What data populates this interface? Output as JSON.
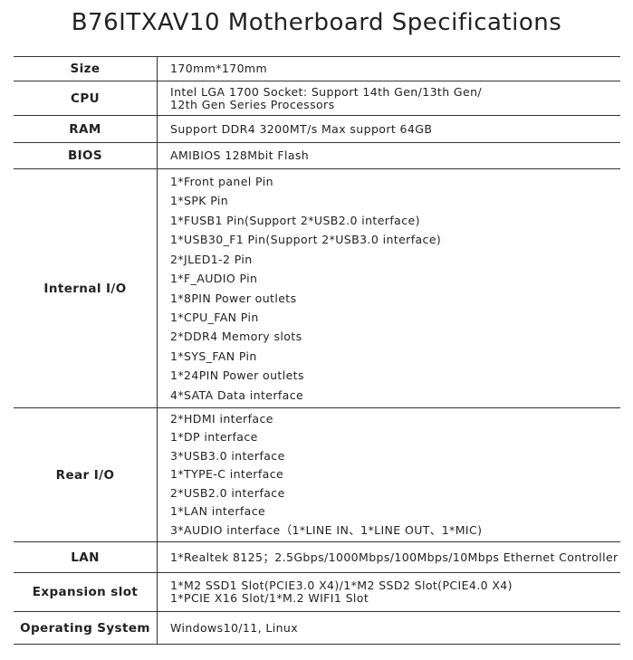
{
  "title": "B76ITXAV10 Motherboard Specifications",
  "rows": [
    {
      "label": "Size",
      "lines": [
        "170mm*170mm"
      ]
    },
    {
      "label": "CPU",
      "lines": [
        "Intel LGA 1700 Socket: Support 14th Gen/13th Gen/",
        "12th Gen Series Processors"
      ]
    },
    {
      "label": "RAM",
      "lines": [
        "Support DDR4 3200MT/s  Max support 64GB"
      ]
    },
    {
      "label": "BIOS",
      "lines": [
        "AMIBIOS 128Mbit Flash"
      ]
    },
    {
      "label": "Internal I/O",
      "lines": [
        "1*Front panel Pin",
        "1*SPK Pin",
        "1*FUSB1 Pin(Support 2*USB2.0 interface)",
        "1*USB30_F1 Pin(Support 2*USB3.0 interface)",
        "2*JLED1-2 Pin",
        "1*F_AUDIO Pin",
        "1*8PIN Power outlets",
        "1*CPU_FAN Pin",
        "2*DDR4 Memory slots",
        "1*SYS_FAN Pin",
        "1*24PIN Power outlets",
        "4*SATA Data interface"
      ]
    },
    {
      "label": "Rear I/O",
      "lines": [
        "2*HDMI interface",
        "1*DP interface",
        "3*USB3.0 interface",
        "1*TYPE-C interface",
        "2*USB2.0 interface",
        "1*LAN interface",
        "3*AUDIO interface（1*LINE IN、1*LINE OUT、1*MIC)"
      ]
    },
    {
      "label": "LAN",
      "lines": [
        "1*Realtek 8125；2.5Gbps/1000Mbps/100Mbps/10Mbps Ethernet Controller"
      ]
    },
    {
      "label": "Expansion slot",
      "lines": [
        "1*M2 SSD1 Slot(PCIE3.0 X4)/1*M2 SSD2 Slot(PCIE4.0 X4)",
        "1*PCIE X16 Slot/1*M.2 WIFI1 Slot"
      ]
    },
    {
      "label": "Operating System",
      "lines": [
        "Windows10/11, Linux"
      ]
    }
  ]
}
